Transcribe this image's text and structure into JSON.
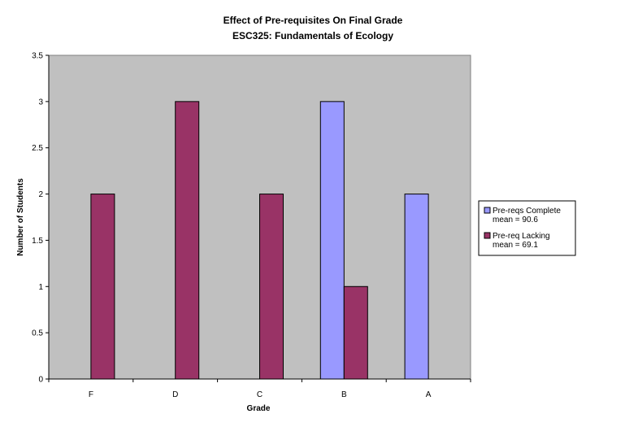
{
  "chart_data": {
    "type": "bar",
    "title": "Effect of Pre-requisites On Final Grade",
    "subtitle": "ESC325: Fundamentals of Ecology",
    "xlabel": "Grade",
    "ylabel": "Number of Students",
    "categories": [
      "F",
      "D",
      "C",
      "B",
      "A"
    ],
    "yticks": [
      "0",
      "0.5",
      "1",
      "1.5",
      "2",
      "2.5",
      "3",
      "3.5"
    ],
    "ylim": [
      0,
      3.5
    ],
    "grid": false,
    "legend_position": "right",
    "plot_background": "#c0c0c0",
    "series": [
      {
        "name": "Pre-reqs Complete",
        "legend_line2": "mean = 90.6",
        "values": [
          0,
          0,
          0,
          3,
          2
        ],
        "color": "#9999ff"
      },
      {
        "name": "Pre-req Lacking",
        "legend_line2": "mean = 69.1",
        "values": [
          2,
          3,
          2,
          1,
          0
        ],
        "color": "#993366"
      }
    ]
  }
}
